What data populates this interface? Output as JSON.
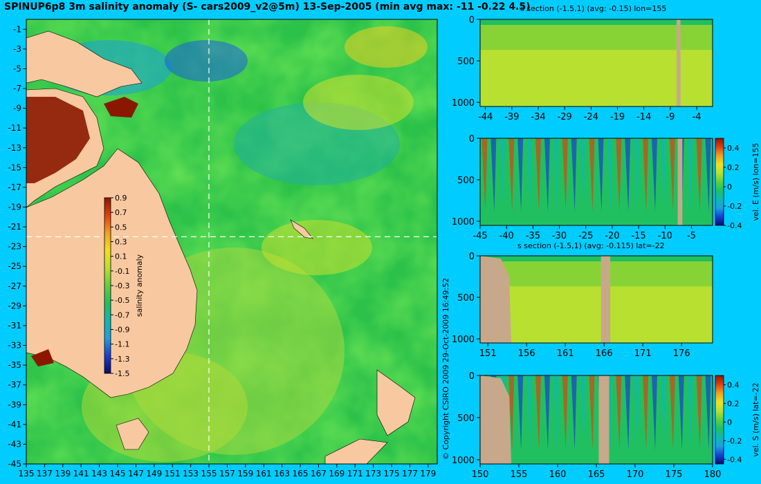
{
  "page": {
    "title": "SPINUP6p8 3m salinity anomaly (S- cars2009_v2@5m) 13-Sep-2005 (min avg max: -11 -0.22 4.5)",
    "copyright": "© Copyright CSIRO 2009   29-Oct-2009 16:49:52"
  },
  "colors": {
    "background": "#00ccff",
    "land": "#f8c8a0",
    "section_land": "#c8a88a",
    "colormap": [
      "#0a0a6e",
      "#1a3fd0",
      "#1ea0e0",
      "#10b8b0",
      "#20c060",
      "#60d040",
      "#b8e030",
      "#f0e020",
      "#f0a020",
      "#e04010",
      "#8a1800"
    ]
  },
  "chart_data": [
    {
      "type": "heatmap",
      "title": "SPINUP6p8 3m salinity anomaly (S- cars2009_v2@5m) 13-Sep-2005 (min avg max: -11 -0.22 4.5)",
      "xlabel": "",
      "ylabel": "",
      "xlim": [
        135,
        180
      ],
      "ylim": [
        -45,
        0
      ],
      "x_ticks": [
        "135",
        "137",
        "139",
        "141",
        "143",
        "145",
        "147",
        "149",
        "151",
        "153",
        "155",
        "157",
        "159",
        "161",
        "163",
        "165",
        "167",
        "169",
        "171",
        "173",
        "175",
        "177",
        "179"
      ],
      "y_ticks": [
        "-1",
        "-3",
        "-5",
        "-7",
        "-9",
        "-11",
        "-13",
        "-15",
        "-17",
        "-19",
        "-21",
        "-23",
        "-25",
        "-27",
        "-29",
        "-31",
        "-33",
        "-35",
        "-37",
        "-39",
        "-41",
        "-43",
        "-45"
      ],
      "section_lines": {
        "lon": 155,
        "lat": -22
      },
      "colorbar": {
        "label": "salinity anomaly",
        "range": [
          -1.5,
          0.9
        ],
        "ticks": [
          "0.9",
          "0.7",
          "0.5",
          "0.3",
          "0.1",
          "-0.1",
          "-0.3",
          "-0.5",
          "-0.7",
          "-0.9",
          "-1.1",
          "-1.3",
          "-1.5"
        ]
      },
      "grid": false
    },
    {
      "type": "heatmap",
      "title": "s section (-1.5,1) (avg: -0.15) lon=155",
      "xlim": [
        -45,
        -1
      ],
      "ylim": [
        1050,
        0
      ],
      "x_ticks": [
        "-44",
        "-39",
        "-34",
        "-29",
        "-24",
        "-19",
        "-14",
        "-9",
        "-4"
      ],
      "y_ticks": [
        "0",
        "500",
        "1000"
      ],
      "colorbar": null
    },
    {
      "type": "heatmap",
      "title": "",
      "xlim": [
        -45,
        -1
      ],
      "ylim": [
        1050,
        0
      ],
      "x_ticks": [
        "-45",
        "-40",
        "-35",
        "-30",
        "-25",
        "-20",
        "-15",
        "-10",
        "-5"
      ],
      "y_ticks": [
        "0",
        "500",
        "1000"
      ],
      "colorbar": {
        "label": "vel. E (m/s) lon=155",
        "range": [
          -0.4,
          0.5
        ],
        "ticks": [
          "0.4",
          "0.2",
          "0",
          "-0.2",
          "-0.4"
        ]
      }
    },
    {
      "type": "heatmap",
      "title": "s section (-1.5,1) (avg: -0.115) lat=-22",
      "xlim": [
        150,
        180
      ],
      "ylim": [
        1050,
        0
      ],
      "x_ticks": [
        "151",
        "156",
        "161",
        "166",
        "171",
        "176"
      ],
      "y_ticks": [
        "0",
        "500",
        "1000"
      ],
      "colorbar": null
    },
    {
      "type": "heatmap",
      "title": "",
      "xlim": [
        150,
        180
      ],
      "ylim": [
        1050,
        0
      ],
      "x_ticks": [
        "150",
        "155",
        "160",
        "165",
        "170",
        "175",
        "180"
      ],
      "y_ticks": [
        "0",
        "500",
        "1000"
      ],
      "colorbar": {
        "label": "vel. S (m/s) lat=-22",
        "range": [
          -0.45,
          0.5
        ],
        "ticks": [
          "0.4",
          "0.2",
          "0",
          "-0.2",
          "-0.4"
        ]
      }
    }
  ]
}
